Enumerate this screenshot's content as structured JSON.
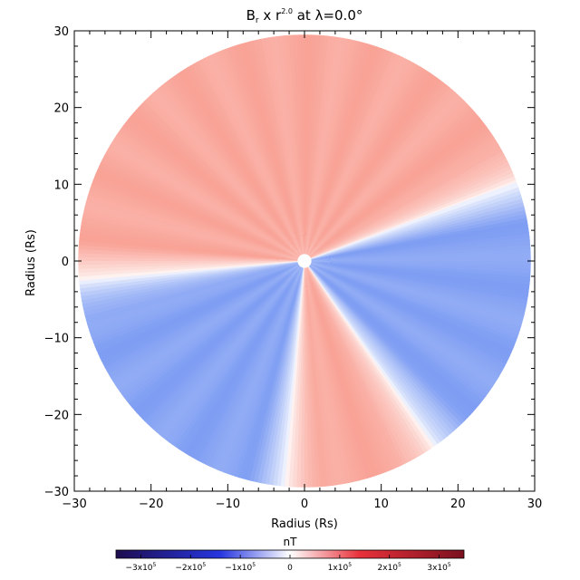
{
  "chart_data": {
    "type": "heatmap",
    "title": {
      "prefix": "B",
      "sub": "r",
      "mid": " x r",
      "sup": "2.0",
      "suffix": " at λ=0.0°"
    },
    "xlabel": "Radius (Rs)",
    "ylabel": "Radius (Rs)",
    "xlim": [
      -30,
      30
    ],
    "ylim": [
      -30,
      30
    ],
    "x_ticks": [
      -30,
      -20,
      -10,
      0,
      10,
      20,
      30
    ],
    "y_ticks": [
      -30,
      -20,
      -10,
      0,
      10,
      20,
      30
    ],
    "x_tick_labels": [
      "−30",
      "−20",
      "−10",
      "0",
      "10",
      "20",
      "30"
    ],
    "y_tick_labels": [
      "−30",
      "−20",
      "−10",
      "0",
      "10",
      "20",
      "30"
    ],
    "disk_radius": 29.5,
    "inner_radius": 1.0,
    "sectors": [
      {
        "from_deg": 20,
        "to_deg": 185,
        "sign": "positive",
        "level": 0.42
      },
      {
        "from_deg": 185,
        "to_deg": 265,
        "sign": "negative",
        "level": 0.5
      },
      {
        "from_deg": 265,
        "to_deg": 305,
        "sign": "positive",
        "level": 0.4
      },
      {
        "from_deg": 305,
        "to_deg": 380,
        "sign": "negative",
        "level": 0.55
      }
    ],
    "colorbar": {
      "label": "nT",
      "range": [
        -3.5,
        3.5
      ],
      "ticks": [
        -3,
        -2,
        -1,
        0,
        1,
        2,
        3
      ],
      "tick_labels": [
        {
          "mant": "−3x10",
          "exp": "5"
        },
        {
          "mant": "−2x10",
          "exp": "5"
        },
        {
          "mant": "−1x10",
          "exp": "5"
        },
        {
          "mant": "0",
          "exp": ""
        },
        {
          "mant": "1x10",
          "exp": "5"
        },
        {
          "mant": "2x10",
          "exp": "5"
        },
        {
          "mant": "3x10",
          "exp": "5"
        }
      ],
      "colors": {
        "neg_end": "#1e0d4f",
        "neg_mid": "#2636e0",
        "neutral": "#ffffff",
        "pos_mid": "#e8313a",
        "pos_end": "#7a0f1e"
      }
    },
    "colors": {
      "positive": "#f9a397",
      "negative": "#7f9ef3",
      "axis": "#000000"
    }
  }
}
